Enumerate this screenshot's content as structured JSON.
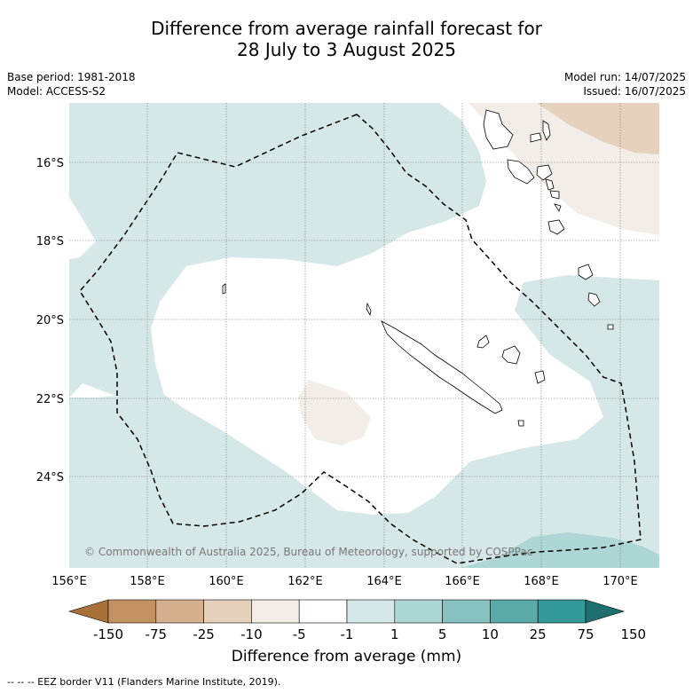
{
  "title_line1": "Difference from average rainfall forecast for",
  "title_line2": "28 July to 3 August 2025",
  "base_period": "Base period: 1981-2018",
  "model": "Model: ACCESS-S2",
  "model_run": "Model run: 14/07/2025",
  "issued": "Issued: 16/07/2025",
  "copyright": "© Commonwealth of Australia 2025, Bureau of Meteorology, supported by COSPPac",
  "latitude_labels": [
    "16°S",
    "18°S",
    "20°S",
    "22°S",
    "24°S"
  ],
  "longitude_labels": [
    "156°E",
    "158°E",
    "160°E",
    "162°E",
    "164°E",
    "166°E",
    "168°E",
    "170°E"
  ],
  "colorbar": {
    "title": "Difference from average (mm)",
    "tick_labels": [
      "-150",
      "-75",
      "-25",
      "-10",
      "-5",
      "-1",
      "1",
      "5",
      "10",
      "25",
      "75",
      "150"
    ],
    "colors": [
      "#a9703a",
      "#c49262",
      "#d6b08e",
      "#e6d1bd",
      "#f2ede6",
      "#ffffff",
      "#d5e8e7",
      "#aed6d5",
      "#87c2c1",
      "#5aaaa9",
      "#34999a",
      "#1f6f70"
    ]
  },
  "eez_legend": "--  --  -- EEZ border V11 (Flanders Marine Institute, 2019)."
}
